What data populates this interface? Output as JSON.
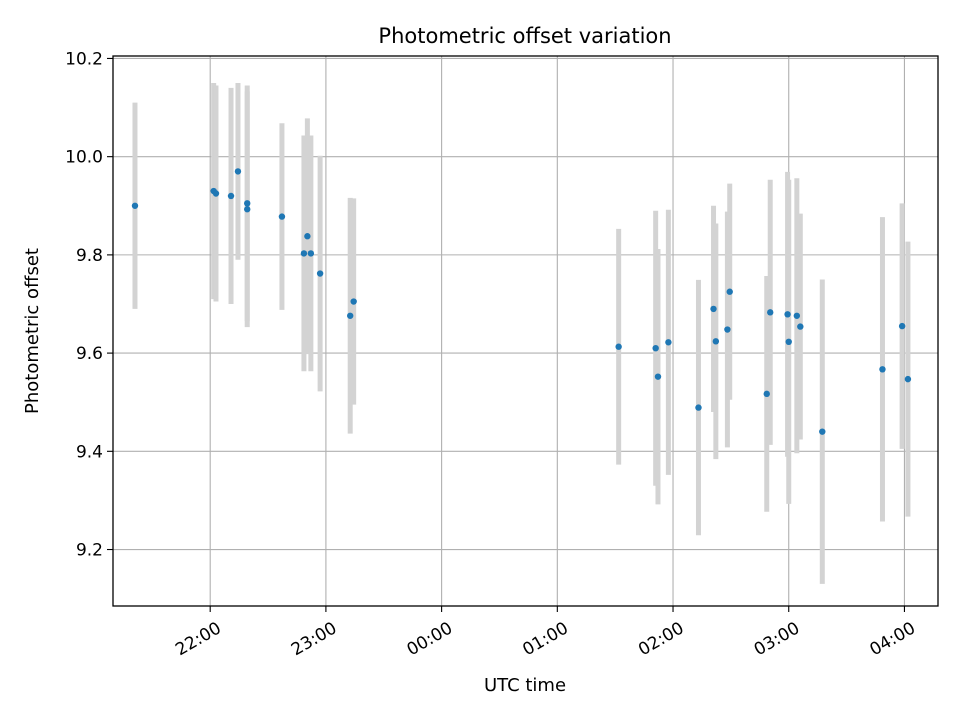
{
  "chart_data": {
    "type": "scatter",
    "title": "Photometric offset variation",
    "xlabel": "UTC time",
    "ylabel": "Photometric offset",
    "x_unit": "hours after 00:00 UTC of first night",
    "xlim": [
      21.16,
      28.29
    ],
    "ylim": [
      9.085,
      10.205
    ],
    "grid": true,
    "legend": "none",
    "x_ticks": [
      {
        "value": 22,
        "label": "22:00"
      },
      {
        "value": 23,
        "label": "23:00"
      },
      {
        "value": 24,
        "label": "00:00"
      },
      {
        "value": 25,
        "label": "01:00"
      },
      {
        "value": 26,
        "label": "02:00"
      },
      {
        "value": 27,
        "label": "03:00"
      },
      {
        "value": 28,
        "label": "04:00"
      }
    ],
    "y_ticks": [
      {
        "value": 9.2,
        "label": "9.2"
      },
      {
        "value": 9.4,
        "label": "9.4"
      },
      {
        "value": 9.6,
        "label": "9.6"
      },
      {
        "value": 9.8,
        "label": "9.8"
      },
      {
        "value": 10.0,
        "label": "10.0"
      },
      {
        "value": 10.2,
        "label": "10.2"
      }
    ],
    "series": [
      {
        "name": "offset",
        "color": "#1f77b4",
        "errorbar_color": "#d3d3d3",
        "points": [
          {
            "x": 21.35,
            "y": 9.9,
            "err": 0.21
          },
          {
            "x": 22.03,
            "y": 9.93,
            "err": 0.22
          },
          {
            "x": 22.05,
            "y": 9.925,
            "err": 0.22
          },
          {
            "x": 22.18,
            "y": 9.92,
            "err": 0.22
          },
          {
            "x": 22.24,
            "y": 9.97,
            "err": 0.18
          },
          {
            "x": 22.32,
            "y": 9.905,
            "err": 0.24
          },
          {
            "x": 22.32,
            "y": 9.893,
            "err": 0.24
          },
          {
            "x": 22.62,
            "y": 9.878,
            "err": 0.19
          },
          {
            "x": 22.81,
            "y": 9.803,
            "err": 0.24
          },
          {
            "x": 22.84,
            "y": 9.838,
            "err": 0.24
          },
          {
            "x": 22.87,
            "y": 9.803,
            "err": 0.24
          },
          {
            "x": 22.95,
            "y": 9.762,
            "err": 0.24
          },
          {
            "x": 23.21,
            "y": 9.676,
            "err": 0.24
          },
          {
            "x": 23.24,
            "y": 9.705,
            "err": 0.21
          },
          {
            "x": 25.53,
            "y": 9.613,
            "err": 0.24
          },
          {
            "x": 25.85,
            "y": 9.61,
            "err": 0.28
          },
          {
            "x": 25.87,
            "y": 9.552,
            "err": 0.26
          },
          {
            "x": 25.96,
            "y": 9.622,
            "err": 0.27
          },
          {
            "x": 26.22,
            "y": 9.489,
            "err": 0.26
          },
          {
            "x": 26.35,
            "y": 9.69,
            "err": 0.21
          },
          {
            "x": 26.37,
            "y": 9.624,
            "err": 0.24
          },
          {
            "x": 26.47,
            "y": 9.648,
            "err": 0.24
          },
          {
            "x": 26.49,
            "y": 9.725,
            "err": 0.22
          },
          {
            "x": 26.81,
            "y": 9.517,
            "err": 0.24
          },
          {
            "x": 26.84,
            "y": 9.683,
            "err": 0.27
          },
          {
            "x": 26.99,
            "y": 9.679,
            "err": 0.29
          },
          {
            "x": 27.0,
            "y": 9.623,
            "err": 0.33
          },
          {
            "x": 27.07,
            "y": 9.676,
            "err": 0.28
          },
          {
            "x": 27.1,
            "y": 9.654,
            "err": 0.23
          },
          {
            "x": 27.29,
            "y": 9.44,
            "err": 0.31
          },
          {
            "x": 27.81,
            "y": 9.567,
            "err": 0.31
          },
          {
            "x": 27.98,
            "y": 9.655,
            "err": 0.25
          },
          {
            "x": 28.03,
            "y": 9.547,
            "err": 0.28
          }
        ]
      }
    ]
  }
}
